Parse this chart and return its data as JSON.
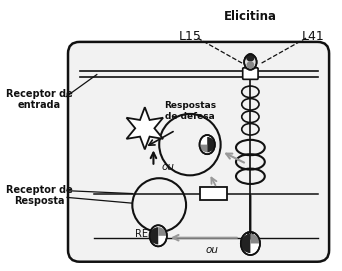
{
  "title": "Elicitina",
  "label_L15": "L15",
  "label_L41": "L41",
  "label_receptor_entrada": "Receptor de\nentrada",
  "label_receptor_resposta": "Receptor de\nResposta",
  "label_respostas": "Respostas\nde defesa",
  "label_ou_top": "ou",
  "label_ou_bottom": "ou",
  "label_RE": "RE",
  "lc": "#111111",
  "gc": "#999999",
  "cell_fill": "#f2f2f2",
  "white": "#ffffff",
  "dark": "#222222",
  "mid": "#888888"
}
